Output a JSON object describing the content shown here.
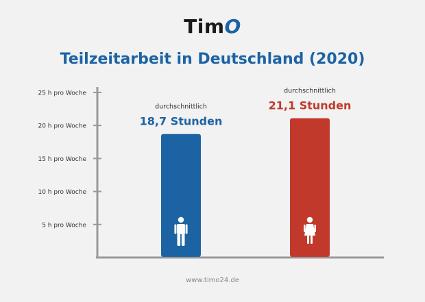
{
  "brand": {
    "logo_text": "Tim",
    "logo_accent": "O",
    "accent_color": "#1c63a4"
  },
  "title": "Teilzeitarbeit in Deutschland (2020)",
  "footer": "www.timo24.de",
  "chart_data": {
    "type": "bar",
    "title": "Teilzeitarbeit in Deutschland (2020)",
    "ylim": [
      0,
      25
    ],
    "y_ticks": [
      5,
      10,
      15,
      20,
      25
    ],
    "y_tick_labels": [
      "5 h pro Woche",
      "10 h pro Woche",
      "15 h pro Woche",
      "20 h pro Woche",
      "25 h pro Woche"
    ],
    "grid": false,
    "bars": [
      {
        "category": "male-icon",
        "value": 18.7,
        "caption": "durchschnittlich",
        "label": "18,7 Stunden",
        "color": "#1c63a4"
      },
      {
        "category": "female-icon",
        "value": 21.1,
        "caption": "durchschnittlich",
        "label": "21,1 Stunden",
        "color": "#c0392b"
      }
    ]
  }
}
